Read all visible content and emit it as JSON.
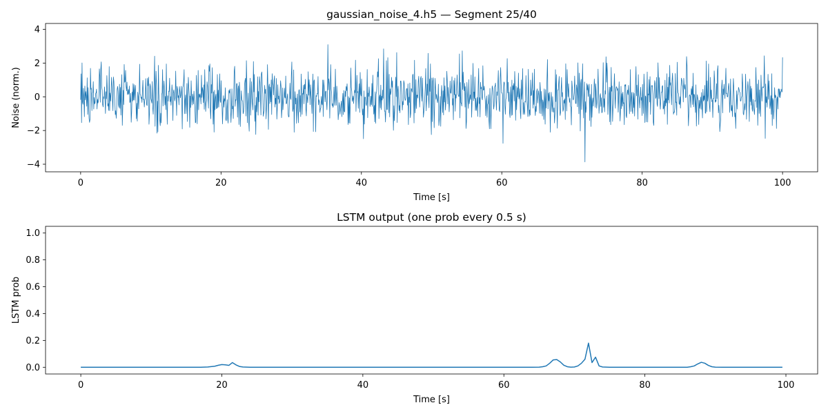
{
  "chart_data": [
    {
      "type": "line",
      "title": "gaussian_noise_4.h5 — Segment 25/40",
      "xlabel": "Time [s]",
      "ylabel": "Noise (norm.)",
      "xlim": [
        -5,
        105
      ],
      "ylim": [
        -4.45,
        4.35
      ],
      "xticks": [
        0,
        20,
        40,
        60,
        80,
        100
      ],
      "yticks": [
        -4,
        -2,
        0,
        2,
        4
      ],
      "xtick_labels": [
        "0",
        "20",
        "40",
        "60",
        "80",
        "100"
      ],
      "ytick_labels": [
        "−4",
        "−2",
        "0",
        "2",
        "4"
      ],
      "grid": false,
      "color": "#1f77b4",
      "series": [
        {
          "name": "noise",
          "description_only_for_generation": "dense zero-mean gaussian noise, 0 to 100 s, std ~1",
          "x_range": [
            0,
            100
          ],
          "n_points": 1500,
          "std": 0.9,
          "clip": [
            -4.05,
            4.05
          ]
        }
      ]
    },
    {
      "type": "line",
      "title": "LSTM output (one prob every 0.5 s)",
      "xlabel": "Time [s]",
      "ylabel": "LSTM prob",
      "xlim": [
        -5,
        104.5
      ],
      "ylim": [
        -0.05,
        1.05
      ],
      "xticks": [
        0,
        20,
        40,
        60,
        80,
        100
      ],
      "yticks": [
        0.0,
        0.2,
        0.4,
        0.6,
        0.8,
        1.0
      ],
      "xtick_labels": [
        "0",
        "20",
        "40",
        "60",
        "80",
        "100"
      ],
      "ytick_labels": [
        "0.0",
        "0.2",
        "0.4",
        "0.6",
        "0.8",
        "1.0"
      ],
      "grid": false,
      "color": "#1f77b4",
      "series": [
        {
          "name": "LSTM prob",
          "x": [
            0,
            17,
            18,
            19,
            19.5,
            20,
            20.5,
            21,
            21.5,
            22,
            22.5,
            23,
            24,
            64,
            65,
            65.5,
            66,
            66.5,
            67,
            67.5,
            68,
            68.5,
            69,
            69.5,
            70,
            70.5,
            71,
            71.5,
            72,
            72.5,
            73,
            73.5,
            74,
            75,
            86,
            86.5,
            87,
            87.5,
            88,
            88.5,
            89,
            89.5,
            90,
            91,
            99.5
          ],
          "y": [
            0.0,
            0.0,
            0.002,
            0.008,
            0.015,
            0.02,
            0.018,
            0.014,
            0.035,
            0.018,
            0.006,
            0.002,
            0.0,
            0.0,
            0.001,
            0.004,
            0.01,
            0.03,
            0.055,
            0.057,
            0.04,
            0.015,
            0.004,
            0.001,
            0.002,
            0.01,
            0.03,
            0.06,
            0.18,
            0.035,
            0.075,
            0.01,
            0.002,
            0.0,
            0.0,
            0.004,
            0.01,
            0.025,
            0.037,
            0.03,
            0.014,
            0.004,
            0.001,
            0.0,
            0.0
          ]
        }
      ]
    }
  ]
}
